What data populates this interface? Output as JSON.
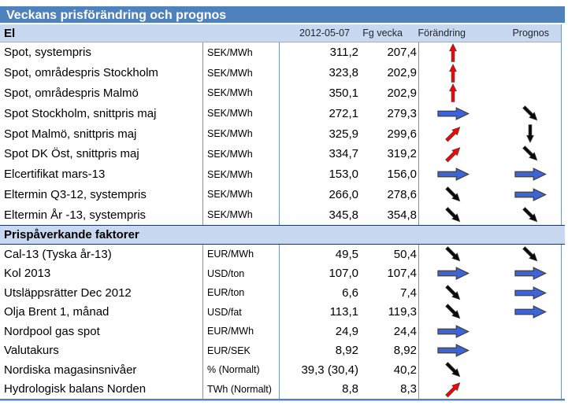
{
  "title": "Veckans prisförändring och prognos",
  "columns": {
    "date": "2012-05-07",
    "prev": "Fg vecka",
    "change": "Förändring",
    "forecast": "Prognos"
  },
  "colors": {
    "title_bg": "#4f81bd",
    "section_bg": "#c8d8f0",
    "grid_border": "#7492c2",
    "section_border": "#17375e",
    "arrow_red": "#ff0000",
    "arrow_blue": "#3e63d6",
    "arrow_black": "#0a0a0a",
    "arrow_outline": "#404040"
  },
  "sections": [
    {
      "header": "El",
      "rows": [
        {
          "label": "Spot, systempris",
          "unit": "SEK/MWh",
          "value": "311,2",
          "prev": "207,4",
          "change": {
            "color": "red",
            "shape": "up"
          },
          "forecast": null
        },
        {
          "label": "Spot, områdespris Stockholm",
          "unit": "SEK/MWh",
          "value": "323,8",
          "prev": "202,9",
          "change": {
            "color": "red",
            "shape": "up"
          },
          "forecast": null
        },
        {
          "label": "Spot, områdespris Malmö",
          "unit": "SEK/MWh",
          "value": "350,1",
          "prev": "202,9",
          "change": {
            "color": "red",
            "shape": "up"
          },
          "forecast": null
        },
        {
          "label": "Spot Stockholm, snittpris maj",
          "unit": "SEK/MWh",
          "value": "272,1",
          "prev": "279,3",
          "change": {
            "color": "blue",
            "shape": "right"
          },
          "forecast": {
            "color": "black",
            "shape": "down-diag"
          }
        },
        {
          "label": "Spot Malmö, snittpris maj",
          "unit": "SEK/MWh",
          "value": "325,9",
          "prev": "299,6",
          "change": {
            "color": "red",
            "shape": "up-diag"
          },
          "forecast": {
            "color": "black",
            "shape": "down"
          }
        },
        {
          "label": "Spot DK Öst, snittpris maj",
          "unit": "SEK/MWh",
          "value": "334,7",
          "prev": "319,2",
          "change": {
            "color": "red",
            "shape": "up-diag"
          },
          "forecast": {
            "color": "black",
            "shape": "down-diag"
          }
        },
        {
          "label": "Elcertifikat mars-13",
          "unit": "SEK/MWh",
          "value": "153,0",
          "prev": "156,0",
          "change": {
            "color": "blue",
            "shape": "right"
          },
          "forecast": {
            "color": "blue",
            "shape": "right"
          }
        },
        {
          "label": "Eltermin Q3-12, systempris",
          "unit": "SEK/MWh",
          "value": "266,0",
          "prev": "278,6",
          "change": {
            "color": "black",
            "shape": "down-diag"
          },
          "forecast": {
            "color": "blue",
            "shape": "right"
          }
        },
        {
          "label": "Eltermin År -13, systempris",
          "unit": "SEK/MWh",
          "value": "345,8",
          "prev": "354,8",
          "change": {
            "color": "black",
            "shape": "down-diag"
          },
          "forecast": {
            "color": "black",
            "shape": "down-diag"
          }
        }
      ]
    },
    {
      "header": "Prispåverkande faktorer",
      "rows": [
        {
          "label": "Cal-13 (Tyska år-13)",
          "unit": "EUR/MWh",
          "value": "49,5",
          "prev": "50,4",
          "change": {
            "color": "black",
            "shape": "down-diag"
          },
          "forecast": {
            "color": "black",
            "shape": "down-diag"
          }
        },
        {
          "label": "Kol 2013",
          "unit": "USD/ton",
          "value": "107,0",
          "prev": "107,4",
          "change": {
            "color": "blue",
            "shape": "right"
          },
          "forecast": {
            "color": "blue",
            "shape": "right"
          }
        },
        {
          "label": "Utsläppsrätter Dec 2012",
          "unit": "EUR/ton",
          "value": "6,6",
          "prev": "7,4",
          "change": {
            "color": "black",
            "shape": "down-diag"
          },
          "forecast": {
            "color": "blue",
            "shape": "right"
          }
        },
        {
          "label": "Olja Brent 1, månad",
          "unit": "USD/fat",
          "value": "113,1",
          "prev": "119,3",
          "change": {
            "color": "black",
            "shape": "down-diag"
          },
          "forecast": {
            "color": "blue",
            "shape": "right"
          }
        },
        {
          "label": "Nordpool gas spot",
          "unit": "EUR/MWh",
          "value": "24,9",
          "prev": "24,4",
          "change": {
            "color": "blue",
            "shape": "right"
          },
          "forecast": null
        },
        {
          "label": "Valutakurs",
          "unit": "EUR/SEK",
          "value": "8,92",
          "prev": "8,92",
          "change": {
            "color": "blue",
            "shape": "right"
          },
          "forecast": null
        },
        {
          "label": "Nordiska magasinsnivåer",
          "unit": "% (Normalt)",
          "value": "39,3 (30,4)",
          "prev": "40,2",
          "change": {
            "color": "black",
            "shape": "down-diag"
          },
          "forecast": null
        },
        {
          "label": "Hydrologisk balans Norden",
          "unit": "TWh (Normalt)",
          "value": "8,8",
          "prev": "8,3",
          "change": {
            "color": "red",
            "shape": "up-diag"
          },
          "forecast": null
        }
      ]
    }
  ]
}
